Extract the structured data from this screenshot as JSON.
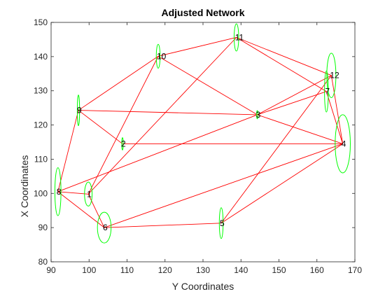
{
  "chart_data": {
    "type": "network",
    "title": "Adjusted Network",
    "xlabel": "Y Coordinates",
    "ylabel": "X Coordinates",
    "xlim": [
      90,
      170
    ],
    "ylim": [
      80,
      150
    ],
    "xticks": [
      90,
      100,
      110,
      120,
      130,
      140,
      150,
      160,
      170
    ],
    "yticks": [
      80,
      90,
      100,
      110,
      120,
      130,
      140,
      150
    ],
    "grid": false,
    "edge_color": "#ff0000",
    "ellipse_color": "#00ff00",
    "nodes": [
      {
        "id": "1",
        "x": 99.8,
        "y": 99.8,
        "rx": 1.0,
        "ry": 3.5
      },
      {
        "id": "2",
        "x": 108.8,
        "y": 114.5,
        "rx": 0.2,
        "ry": 1.8
      },
      {
        "id": "3",
        "x": 144.3,
        "y": 123.0,
        "rx": 0.2,
        "ry": 1.2
      },
      {
        "id": "4",
        "x": 166.8,
        "y": 114.5,
        "rx": 2.0,
        "ry": 8.5
      },
      {
        "id": "5",
        "x": 134.8,
        "y": 91.3,
        "rx": 0.5,
        "ry": 4.5
      },
      {
        "id": "6",
        "x": 104.0,
        "y": 90.0,
        "rx": 1.8,
        "ry": 4.5
      },
      {
        "id": "7",
        "x": 162.5,
        "y": 129.8,
        "rx": 0.5,
        "ry": 6.0
      },
      {
        "id": "8",
        "x": 91.8,
        "y": 100.5,
        "rx": 0.8,
        "ry": 7.0
      },
      {
        "id": "9",
        "x": 97.2,
        "y": 124.3,
        "rx": 0.3,
        "ry": 4.5
      },
      {
        "id": "10",
        "x": 118.2,
        "y": 140.1,
        "rx": 0.5,
        "ry": 3.5
      },
      {
        "id": "11",
        "x": 138.8,
        "y": 145.6,
        "rx": 0.6,
        "ry": 4.0
      },
      {
        "id": "12",
        "x": 163.8,
        "y": 134.5,
        "rx": 1.2,
        "ry": 6.5
      }
    ],
    "edges": [
      [
        "8",
        "9"
      ],
      [
        "8",
        "1"
      ],
      [
        "8",
        "6"
      ],
      [
        "8",
        "3"
      ],
      [
        "9",
        "10"
      ],
      [
        "9",
        "2"
      ],
      [
        "9",
        "3"
      ],
      [
        "10",
        "11"
      ],
      [
        "10",
        "1"
      ],
      [
        "10",
        "3"
      ],
      [
        "11",
        "12"
      ],
      [
        "11",
        "7"
      ],
      [
        "11",
        "1"
      ],
      [
        "12",
        "3"
      ],
      [
        "12",
        "4"
      ],
      [
        "12",
        "5"
      ],
      [
        "7",
        "3"
      ],
      [
        "7",
        "4"
      ],
      [
        "2",
        "4"
      ],
      [
        "1",
        "6"
      ],
      [
        "6",
        "4"
      ],
      [
        "6",
        "5"
      ],
      [
        "5",
        "4"
      ],
      [
        "3",
        "4"
      ]
    ]
  }
}
